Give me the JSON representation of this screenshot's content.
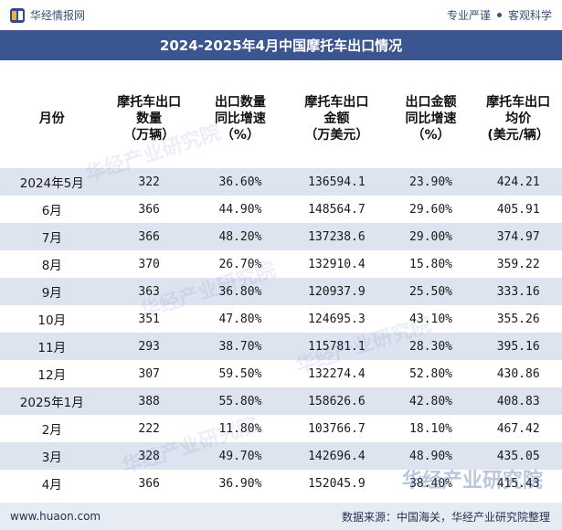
{
  "header": {
    "site_name": "华经情报网",
    "slogan_left": "专业严谨",
    "slogan_right": "客观科学"
  },
  "title": "2024-2025年4月中国摩托车出口情况",
  "table": {
    "columns": [
      "月份",
      "摩托车出口\n数量\n（万辆）",
      "出口数量\n同比增速\n（%）",
      "摩托车出口\n金额\n（万美元）",
      "出口金额\n同比增速\n（%）",
      "摩托车出口\n均价\n(美元/辆）"
    ],
    "rows": [
      [
        "2024年5月",
        "322",
        "36.60%",
        "136594.1",
        "23.90%",
        "424.21"
      ],
      [
        "6月",
        "366",
        "44.90%",
        "148564.7",
        "29.60%",
        "405.91"
      ],
      [
        "7月",
        "366",
        "48.20%",
        "137238.6",
        "29.00%",
        "374.97"
      ],
      [
        "8月",
        "370",
        "26.70%",
        "132910.4",
        "15.80%",
        "359.22"
      ],
      [
        "9月",
        "363",
        "36.80%",
        "120937.9",
        "25.50%",
        "333.16"
      ],
      [
        "10月",
        "351",
        "47.80%",
        "124695.3",
        "43.10%",
        "355.26"
      ],
      [
        "11月",
        "293",
        "38.70%",
        "115781.1",
        "28.30%",
        "395.16"
      ],
      [
        "12月",
        "307",
        "59.50%",
        "132274.4",
        "52.80%",
        "430.86"
      ],
      [
        "2025年1月",
        "388",
        "55.80%",
        "158626.6",
        "42.80%",
        "408.83"
      ],
      [
        "2月",
        "222",
        "11.80%",
        "103766.7",
        "18.10%",
        "467.42"
      ],
      [
        "3月",
        "328",
        "49.70%",
        "142696.4",
        "48.90%",
        "435.05"
      ],
      [
        "4月",
        "366",
        "36.90%",
        "152045.9",
        "38.40%",
        "415.43"
      ]
    ]
  },
  "watermark": {
    "cn": "华经产业研究院",
    "en": "www.huaon.com"
  },
  "footer": {
    "url": "www.huaon.com",
    "source": "数据来源：中国海关，华经产业研究院整理"
  },
  "colors": {
    "title_bg": "#3b5591",
    "stripe": "#dde3ef",
    "footer_bg": "#e6ebf4"
  }
}
